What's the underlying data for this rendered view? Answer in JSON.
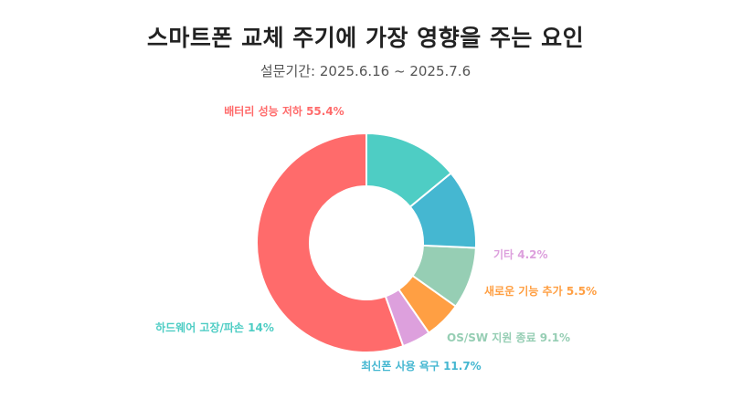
{
  "chart_data": {
    "type": "pie",
    "style": "donut",
    "title": "스마트폰 교체 주기에 가장 영향을 주는 요인",
    "subtitle": "설문기간: 2025.6.16 ~ 2025.7.6",
    "slices": [
      {
        "label": "배터리 성능 저하",
        "value": 55.4,
        "display": "배터리 성능 저하 55.4%",
        "color": "#ff6b6b"
      },
      {
        "label": "기타",
        "value": 4.2,
        "display": "기타 4.2%",
        "color": "#dda0dd"
      },
      {
        "label": "새로운 기능 추가",
        "value": 5.5,
        "display": "새로운 기능 추가 5.5%",
        "color": "#ff9f43"
      },
      {
        "label": "OS/SW 지원 종료",
        "value": 9.1,
        "display": "OS/SW 지원 종료 9.1%",
        "color": "#96ceb4"
      },
      {
        "label": "최신폰 사용 욕구",
        "value": 11.7,
        "display": "최신폰 사용 욕구 11.7%",
        "color": "#45b7d1"
      },
      {
        "label": "하드웨어 고장/파손",
        "value": 14,
        "display": "하드웨어 고장/파손 14%",
        "color": "#4ecdc4"
      }
    ]
  }
}
